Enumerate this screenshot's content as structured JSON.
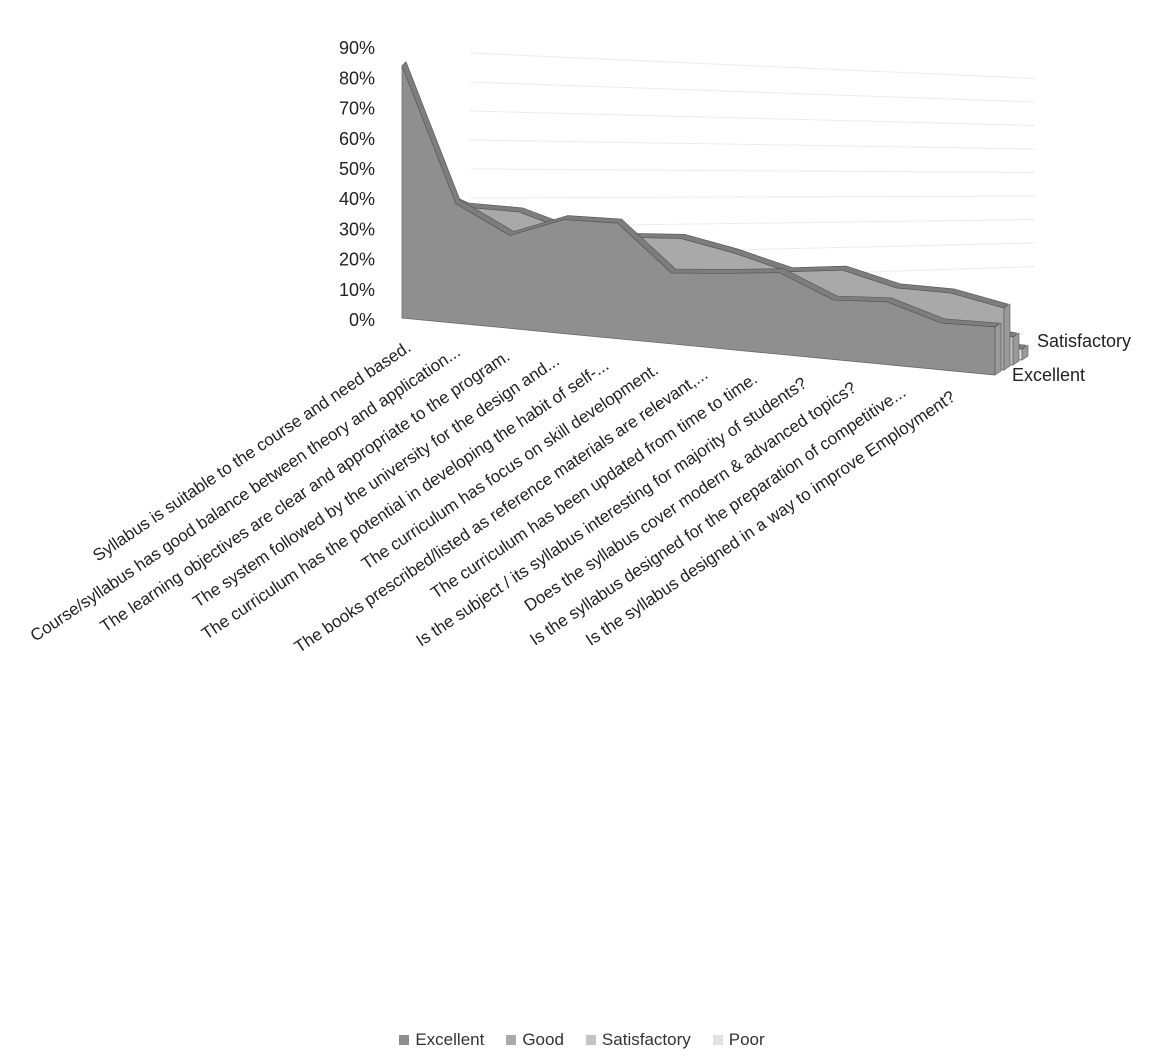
{
  "chart_data": {
    "type": "area",
    "view": "3d",
    "y_tick_labels": [
      "0%",
      "10%",
      "20%",
      "30%",
      "40%",
      "50%",
      "60%",
      "70%",
      "80%",
      "90%"
    ],
    "ylim": [
      0,
      90
    ],
    "categories": [
      "Syllabus is suitable to the course and need based.",
      "Course/syllabus has good balance between theory and application...",
      "The learning objectives are clear and appropriate to the program.",
      "The system followed by the university for the design and...",
      "The curriculum has the potential in developing the habit of self-...",
      "The curriculum has focus on skill development.",
      "The books prescribed/listed as reference materials are relevant,...",
      "The curriculum has been updated from time to time.",
      "Is the subject / its syllabus interesting for majority of students?",
      "Does the syllabus cover modern & advanced topics?",
      "Is the syllabus designed for the preparation of competitive...",
      "Is the syllabus designed in a way to improve Employment?"
    ],
    "series": [
      {
        "name": "Excellent",
        "color": "#8f8f8f",
        "values": [
          87,
          43,
          35,
          45,
          48,
          31,
          35,
          40,
          31,
          35,
          28,
          31
        ]
      },
      {
        "name": "Good",
        "color": "#a9a9a9",
        "values": [
          45,
          40,
          42,
          38,
          40,
          44,
          42,
          38,
          44,
          40,
          43,
          40
        ]
      },
      {
        "name": "Satisfactory",
        "color": "#c4c4c4",
        "values": [
          12,
          14,
          16,
          14,
          12,
          18,
          16,
          18,
          16,
          17,
          20,
          18
        ]
      },
      {
        "name": "Poor",
        "color": "#e2e2e2",
        "values": [
          3,
          4,
          5,
          4,
          3,
          5,
          4,
          5,
          6,
          5,
          6,
          7
        ]
      }
    ],
    "depth_axis_labels": [
      "Satisfactory",
      "Excellent"
    ],
    "legend_position": "bottom",
    "grid": true
  }
}
